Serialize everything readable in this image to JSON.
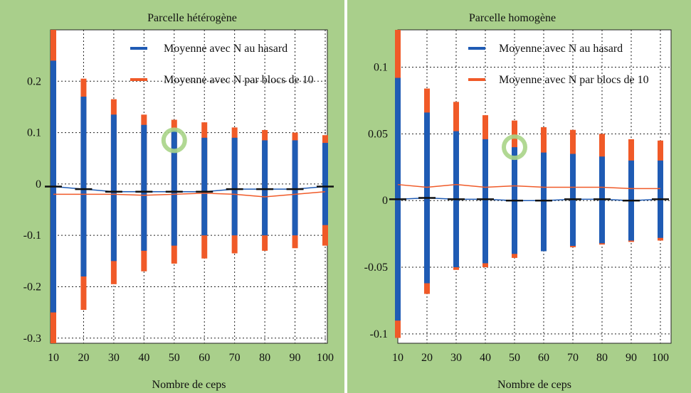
{
  "chart_data": [
    {
      "type": "bar",
      "title": "Parcelle hétérogène",
      "xlabel": "Nombre de ceps",
      "ylabel": "",
      "x": [
        10,
        20,
        30,
        40,
        50,
        60,
        70,
        80,
        90,
        100
      ],
      "x_ticks": [
        "10",
        "20",
        "30",
        "40",
        "50",
        "60",
        "70",
        "80",
        "90",
        "100"
      ],
      "y_ticks": [
        {
          "value": 0.2,
          "label": "0.2"
        },
        {
          "value": 0.1,
          "label": "0.1"
        },
        {
          "value": 0,
          "label": "0"
        },
        {
          "value": -0.1,
          "label": "-0.1"
        },
        {
          "value": -0.2,
          "label": "-0.2"
        },
        {
          "value": -0.3,
          "label": "-0.3"
        }
      ],
      "ylim": [
        -0.31,
        0.3
      ],
      "grid": true,
      "legend_position": "top-right",
      "highlight": {
        "x": 50,
        "y": 0.085,
        "color": "#a9d487"
      },
      "series": [
        {
          "name": "Moyenne avec N au hasard",
          "color": "#1f5bb4",
          "low": [
            -0.25,
            -0.18,
            -0.15,
            -0.13,
            -0.12,
            -0.1,
            -0.1,
            -0.1,
            -0.1,
            -0.08
          ],
          "high": [
            0.24,
            0.17,
            0.135,
            0.115,
            0.105,
            0.09,
            0.09,
            0.085,
            0.085,
            0.08
          ],
          "mean": [
            -0.005,
            -0.01,
            -0.015,
            -0.015,
            -0.015,
            -0.015,
            -0.01,
            -0.01,
            -0.01,
            -0.005
          ]
        },
        {
          "name": "Moyenne avec N par blocs de 10",
          "color": "#f05a28",
          "low": [
            -0.31,
            -0.245,
            -0.195,
            -0.17,
            -0.155,
            -0.145,
            -0.135,
            -0.13,
            -0.125,
            -0.12
          ],
          "high": [
            0.3,
            0.205,
            0.165,
            0.135,
            0.125,
            0.12,
            0.11,
            0.105,
            0.1,
            0.095
          ],
          "mean": [
            -0.02,
            -0.02,
            -0.02,
            -0.022,
            -0.02,
            -0.018,
            -0.02,
            -0.025,
            -0.02,
            -0.015
          ]
        }
      ]
    },
    {
      "type": "bar",
      "title": "Parcelle homogène",
      "xlabel": "Nombre de ceps",
      "ylabel": "",
      "x": [
        10,
        20,
        30,
        40,
        50,
        60,
        70,
        80,
        90,
        100
      ],
      "x_ticks": [
        "10",
        "20",
        "30",
        "40",
        "50",
        "60",
        "70",
        "80",
        "90",
        "100"
      ],
      "y_ticks": [
        {
          "value": 0.1,
          "label": "0.1"
        },
        {
          "value": 0.05,
          "label": "0.05"
        },
        {
          "value": 0,
          "label": "0"
        },
        {
          "value": -0.05,
          "label": "-0.05"
        },
        {
          "value": -0.1,
          "label": "-0.1"
        }
      ],
      "ylim": [
        -0.107,
        0.128
      ],
      "grid": true,
      "legend_position": "top-right",
      "highlight": {
        "x": 50,
        "y": 0.04,
        "color": "#a9d487"
      },
      "series": [
        {
          "name": "Moyenne avec N au hasard",
          "color": "#1f5bb4",
          "low": [
            -0.09,
            -0.062,
            -0.05,
            -0.047,
            -0.04,
            -0.038,
            -0.034,
            -0.032,
            -0.03,
            -0.028
          ],
          "high": [
            0.092,
            0.066,
            0.052,
            0.046,
            0.04,
            0.036,
            0.035,
            0.033,
            0.03,
            0.03
          ],
          "mean": [
            0.001,
            0.002,
            0.001,
            0.001,
            0.0,
            0.0,
            0.001,
            0.001,
            0.0,
            0.001
          ]
        },
        {
          "name": "Moyenne avec N par blocs de 10",
          "color": "#f05a28",
          "low": [
            -0.103,
            -0.07,
            -0.052,
            -0.05,
            -0.043,
            -0.038,
            -0.035,
            -0.033,
            -0.031,
            -0.03
          ],
          "high": [
            0.128,
            0.084,
            0.074,
            0.064,
            0.06,
            0.055,
            0.053,
            0.05,
            0.046,
            0.045
          ],
          "mean": [
            0.012,
            0.01,
            0.012,
            0.01,
            0.011,
            0.01,
            0.01,
            0.01,
            0.009,
            0.009
          ]
        }
      ]
    }
  ]
}
